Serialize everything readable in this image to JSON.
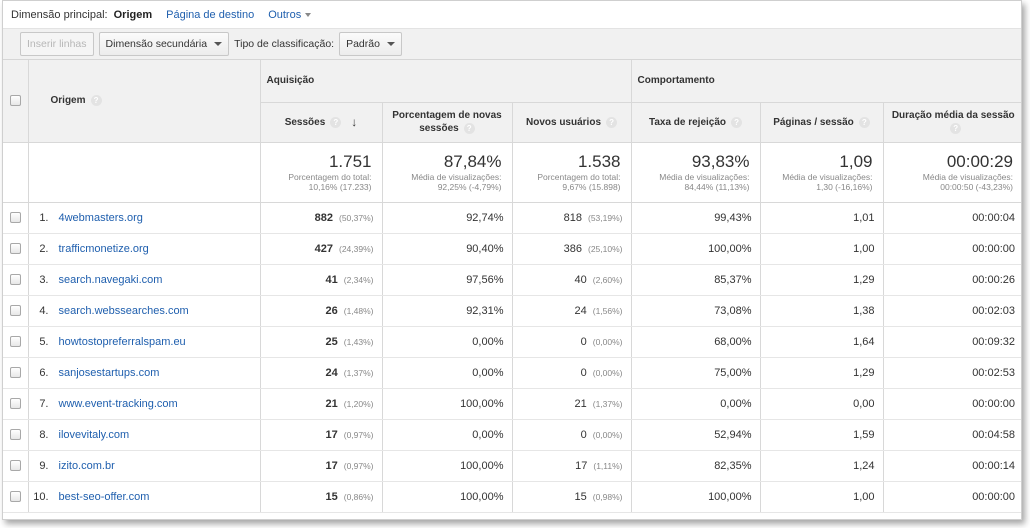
{
  "dimension_bar": {
    "label": "Dimensão principal:",
    "active": "Origem",
    "links": [
      "Página de destino"
    ],
    "others": "Outros"
  },
  "toolbar": {
    "insert_rows": "Inserir linhas",
    "secondary_dimension": "Dimensão secundária",
    "sort_type_label": "Tipo de classificação:",
    "sort_type_value": "Padrão"
  },
  "table": {
    "origin_header": "Origem",
    "groups": {
      "acquisition": "Aquisição",
      "behavior": "Comportamento"
    },
    "columns": [
      "Sessões",
      "Porcentagem de novas sessões",
      "Novos usuários",
      "Taxa de rejeição",
      "Páginas / sessão",
      "Duração média da sessão"
    ],
    "totals": [
      {
        "value": "1.751",
        "sub1": "Porcentagem do total:",
        "sub2": "10,16% (17.233)"
      },
      {
        "value": "87,84%",
        "sub1": "Média de visualizações:",
        "sub2": "92,25% (-4,79%)"
      },
      {
        "value": "1.538",
        "sub1": "Porcentagem do total:",
        "sub2": "9,67% (15.898)"
      },
      {
        "value": "93,83%",
        "sub1": "Média de visualizações:",
        "sub2": "84,44% (11,13%)"
      },
      {
        "value": "1,09",
        "sub1": "Média de visualizações:",
        "sub2": "1,30 (-16,16%)"
      },
      {
        "value": "00:00:29",
        "sub1": "Média de visualizações:",
        "sub2": "00:00:50 (-43,23%)"
      }
    ],
    "rows": [
      {
        "idx": "1.",
        "source": "4webmasters.org",
        "sessions": "882",
        "sessions_pct": "(50,37%)",
        "new_sessions": "92,74%",
        "new_users": "818",
        "new_users_pct": "(53,19%)",
        "bounce": "99,43%",
        "pages": "1,01",
        "duration": "00:00:04"
      },
      {
        "idx": "2.",
        "source": "trafficmonetize.org",
        "sessions": "427",
        "sessions_pct": "(24,39%)",
        "new_sessions": "90,40%",
        "new_users": "386",
        "new_users_pct": "(25,10%)",
        "bounce": "100,00%",
        "pages": "1,00",
        "duration": "00:00:00"
      },
      {
        "idx": "3.",
        "source": "search.navegaki.com",
        "sessions": "41",
        "sessions_pct": "(2,34%)",
        "new_sessions": "97,56%",
        "new_users": "40",
        "new_users_pct": "(2,60%)",
        "bounce": "85,37%",
        "pages": "1,29",
        "duration": "00:00:26"
      },
      {
        "idx": "4.",
        "source": "search.webssearches.com",
        "sessions": "26",
        "sessions_pct": "(1,48%)",
        "new_sessions": "92,31%",
        "new_users": "24",
        "new_users_pct": "(1,56%)",
        "bounce": "73,08%",
        "pages": "1,38",
        "duration": "00:02:03"
      },
      {
        "idx": "5.",
        "source": "howtostopreferralspam.eu",
        "sessions": "25",
        "sessions_pct": "(1,43%)",
        "new_sessions": "0,00%",
        "new_users": "0",
        "new_users_pct": "(0,00%)",
        "bounce": "68,00%",
        "pages": "1,64",
        "duration": "00:09:32"
      },
      {
        "idx": "6.",
        "source": "sanjosestartups.com",
        "sessions": "24",
        "sessions_pct": "(1,37%)",
        "new_sessions": "0,00%",
        "new_users": "0",
        "new_users_pct": "(0,00%)",
        "bounce": "75,00%",
        "pages": "1,29",
        "duration": "00:02:53"
      },
      {
        "idx": "7.",
        "source": "www.event-tracking.com",
        "sessions": "21",
        "sessions_pct": "(1,20%)",
        "new_sessions": "100,00%",
        "new_users": "21",
        "new_users_pct": "(1,37%)",
        "bounce": "0,00%",
        "pages": "0,00",
        "duration": "00:00:00"
      },
      {
        "idx": "8.",
        "source": "ilovevitaly.com",
        "sessions": "17",
        "sessions_pct": "(0,97%)",
        "new_sessions": "0,00%",
        "new_users": "0",
        "new_users_pct": "(0,00%)",
        "bounce": "52,94%",
        "pages": "1,59",
        "duration": "00:04:58"
      },
      {
        "idx": "9.",
        "source": "izito.com.br",
        "sessions": "17",
        "sessions_pct": "(0,97%)",
        "new_sessions": "100,00%",
        "new_users": "17",
        "new_users_pct": "(1,11%)",
        "bounce": "82,35%",
        "pages": "1,24",
        "duration": "00:00:14"
      },
      {
        "idx": "10.",
        "source": "best-seo-offer.com",
        "sessions": "15",
        "sessions_pct": "(0,86%)",
        "new_sessions": "100,00%",
        "new_users": "15",
        "new_users_pct": "(0,98%)",
        "bounce": "100,00%",
        "pages": "1,00",
        "duration": "00:00:00"
      }
    ]
  },
  "colors": {
    "link": "#1f5fae",
    "header_bg": "#f1f1f1",
    "border": "#d8d8d8"
  }
}
